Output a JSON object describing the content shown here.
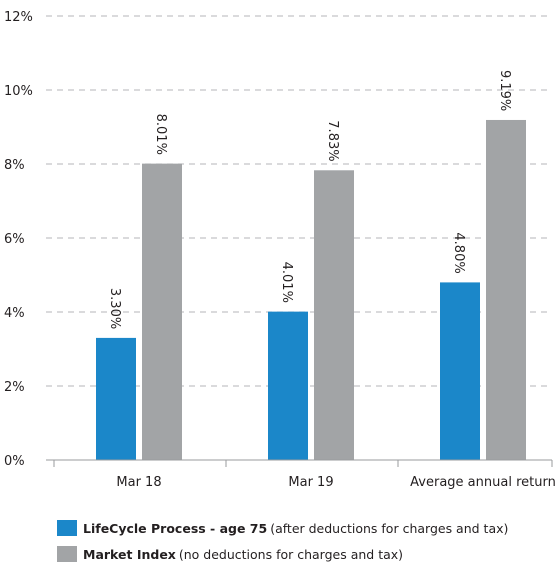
{
  "chart_data": {
    "type": "bar",
    "categories": [
      "Mar 18",
      "Mar 19",
      "Average annual return"
    ],
    "series": [
      {
        "name": "LifeCycle Process - age 75",
        "note": "(after deductions for charges and tax)",
        "color": "#1b87c9",
        "values": [
          3.3,
          4.01,
          4.8
        ],
        "labels": [
          "3.30%",
          "4.01%",
          "4.80%"
        ]
      },
      {
        "name": "Market Index",
        "note": "(no deductions for charges and tax)",
        "color": "#a2a4a6",
        "values": [
          8.01,
          7.83,
          9.19
        ],
        "labels": [
          "8.01%",
          "7.83%",
          "9.19%"
        ]
      }
    ],
    "ylim": [
      0,
      12
    ],
    "yticks": [
      0,
      2,
      4,
      6,
      8,
      10,
      12
    ],
    "ytick_labels": [
      "0%",
      "2%",
      "4%",
      "6%",
      "8%",
      "10%",
      "12%"
    ],
    "grid": "dashed horizontal",
    "legend_position": "bottom-left",
    "title": "",
    "xlabel": "",
    "ylabel": ""
  }
}
